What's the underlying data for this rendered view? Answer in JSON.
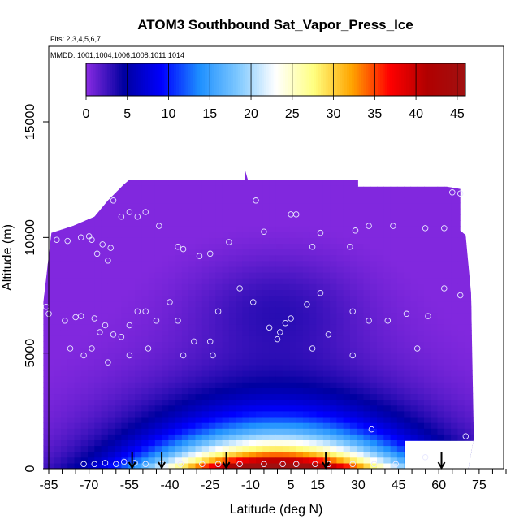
{
  "chart_data": {
    "type": "heatmap",
    "title": "ATOM3 Southbound Sat_Vapor_Press_Ice",
    "flights_note": "Flts: 2,3,4,5,6,7",
    "dates_note": "MMDD: 1001,1004,1006,1008,1011,1014",
    "xlabel": "Latitude (deg N)",
    "ylabel": "Altitude (m)",
    "xlim": [
      -85,
      85
    ],
    "ylim": [
      0,
      17500
    ],
    "xticks": [
      "-85",
      "-70",
      "-55",
      "-40",
      "-25",
      "-10",
      "5",
      "15",
      "30",
      "45",
      "60",
      "75"
    ],
    "xtick_values": [
      -85,
      -70,
      -55,
      -40,
      -25,
      -10,
      5,
      15,
      30,
      45,
      60,
      75
    ],
    "yticks": [
      "0",
      "5000",
      "10000",
      "15000"
    ],
    "ytick_values": [
      0,
      5000,
      10000,
      15000
    ],
    "colorbar": {
      "min": 0,
      "max": 46,
      "ticks": [
        "0",
        "5",
        "10",
        "15",
        "20",
        "25",
        "30",
        "35",
        "40",
        "45"
      ],
      "tick_values": [
        0,
        5,
        10,
        15,
        20,
        25,
        30,
        35,
        40,
        45
      ],
      "colors": [
        "#8a2be2",
        "#0000a0",
        "#0000ff",
        "#1e90ff",
        "#7ec8ff",
        "#ffffff",
        "#ffff80",
        "#ffa500",
        "#ff0000",
        "#b00000",
        "#a01010"
      ]
    },
    "field_description_model": {
      "surface_peak": 46,
      "scale_height_m": 1300,
      "lat_width_deg": 32,
      "upper_floor": 0.3
    },
    "profile_arrows_lat": [
      -54,
      -43,
      -19,
      18,
      61
    ],
    "sample_points": [
      {
        "lat": -82,
        "alt": 9900
      },
      {
        "lat": -78,
        "alt": 9850
      },
      {
        "lat": -73,
        "alt": 10000
      },
      {
        "lat": -70,
        "alt": 10050
      },
      {
        "lat": -69,
        "alt": 9900
      },
      {
        "lat": -67,
        "alt": 9300
      },
      {
        "lat": -65,
        "alt": 9700
      },
      {
        "lat": -63,
        "alt": 9000
      },
      {
        "lat": -62,
        "alt": 9550
      },
      {
        "lat": -61,
        "alt": 11600
      },
      {
        "lat": -58,
        "alt": 10900
      },
      {
        "lat": -55,
        "alt": 11100
      },
      {
        "lat": -52,
        "alt": 10900
      },
      {
        "lat": -49,
        "alt": 11100
      },
      {
        "lat": -44,
        "alt": 10500
      },
      {
        "lat": -37,
        "alt": 9600
      },
      {
        "lat": -35,
        "alt": 9500
      },
      {
        "lat": -29,
        "alt": 9200
      },
      {
        "lat": -25,
        "alt": 9300
      },
      {
        "lat": -18,
        "alt": 9800
      },
      {
        "lat": -8,
        "alt": 11600
      },
      {
        "lat": -5,
        "alt": 10250
      },
      {
        "lat": 5,
        "alt": 11000
      },
      {
        "lat": 7,
        "alt": 11000
      },
      {
        "lat": 13,
        "alt": 9600
      },
      {
        "lat": 16,
        "alt": 10200
      },
      {
        "lat": 27,
        "alt": 9600
      },
      {
        "lat": 29,
        "alt": 10300
      },
      {
        "lat": 34,
        "alt": 10500
      },
      {
        "lat": 43,
        "alt": 10500
      },
      {
        "lat": 55,
        "alt": 10400
      },
      {
        "lat": 62,
        "alt": 10400
      },
      {
        "lat": 65,
        "alt": 11950
      },
      {
        "lat": 68,
        "alt": 11900
      },
      {
        "lat": -86,
        "alt": 7000
      },
      {
        "lat": -85,
        "alt": 6700
      },
      {
        "lat": -79,
        "alt": 6400
      },
      {
        "lat": -75,
        "alt": 6550
      },
      {
        "lat": -73,
        "alt": 6600
      },
      {
        "lat": -68,
        "alt": 6500
      },
      {
        "lat": -66,
        "alt": 5900
      },
      {
        "lat": -64,
        "alt": 6200
      },
      {
        "lat": -61,
        "alt": 5800
      },
      {
        "lat": -58,
        "alt": 5700
      },
      {
        "lat": -55,
        "alt": 6200
      },
      {
        "lat": -52,
        "alt": 6800
      },
      {
        "lat": -49,
        "alt": 6800
      },
      {
        "lat": -45,
        "alt": 6400
      },
      {
        "lat": -40,
        "alt": 7200
      },
      {
        "lat": -37,
        "alt": 6400
      },
      {
        "lat": -31,
        "alt": 5500
      },
      {
        "lat": -25,
        "alt": 5500
      },
      {
        "lat": -22,
        "alt": 6800
      },
      {
        "lat": -14,
        "alt": 7800
      },
      {
        "lat": -9,
        "alt": 7200
      },
      {
        "lat": -3,
        "alt": 6100
      },
      {
        "lat": 1,
        "alt": 5900
      },
      {
        "lat": 3,
        "alt": 6300
      },
      {
        "lat": 5,
        "alt": 6500
      },
      {
        "lat": 11,
        "alt": 7100
      },
      {
        "lat": 16,
        "alt": 7600
      },
      {
        "lat": 19,
        "alt": 5800
      },
      {
        "lat": 28,
        "alt": 6800
      },
      {
        "lat": 34,
        "alt": 6400
      },
      {
        "lat": 41,
        "alt": 6400
      },
      {
        "lat": 48,
        "alt": 6700
      },
      {
        "lat": 56,
        "alt": 6600
      },
      {
        "lat": 62,
        "alt": 7800
      },
      {
        "lat": 68,
        "alt": 7500
      },
      {
        "lat": -77,
        "alt": 5200
      },
      {
        "lat": -72,
        "alt": 4900
      },
      {
        "lat": -69,
        "alt": 5200
      },
      {
        "lat": -63,
        "alt": 4600
      },
      {
        "lat": -55,
        "alt": 4900
      },
      {
        "lat": -48,
        "alt": 5200
      },
      {
        "lat": -35,
        "alt": 4900
      },
      {
        "lat": -24,
        "alt": 4900
      },
      {
        "lat": 0,
        "alt": 5600
      },
      {
        "lat": 13,
        "alt": 5200
      },
      {
        "lat": 28,
        "alt": 4900
      },
      {
        "lat": 52,
        "alt": 5200
      },
      {
        "lat": 35,
        "alt": 1700
      },
      {
        "lat": 55,
        "alt": 500
      },
      {
        "lat": 70,
        "alt": 1400
      },
      {
        "lat": -72,
        "alt": 200
      },
      {
        "lat": -68,
        "alt": 200
      },
      {
        "lat": -64,
        "alt": 250
      },
      {
        "lat": -60,
        "alt": 200
      },
      {
        "lat": -57,
        "alt": 300
      },
      {
        "lat": -53,
        "alt": 250
      },
      {
        "lat": -49,
        "alt": 200
      },
      {
        "lat": -43,
        "alt": 200
      },
      {
        "lat": -36,
        "alt": 200
      },
      {
        "lat": -28,
        "alt": 200
      },
      {
        "lat": -22,
        "alt": 200
      },
      {
        "lat": -14,
        "alt": 200
      },
      {
        "lat": -5,
        "alt": 200
      },
      {
        "lat": 2,
        "alt": 200
      },
      {
        "lat": 7,
        "alt": 200
      },
      {
        "lat": 14,
        "alt": 200
      },
      {
        "lat": 19,
        "alt": 200
      },
      {
        "lat": 28,
        "alt": 200
      },
      {
        "lat": 36,
        "alt": 200
      },
      {
        "lat": 44,
        "alt": 200
      }
    ]
  }
}
